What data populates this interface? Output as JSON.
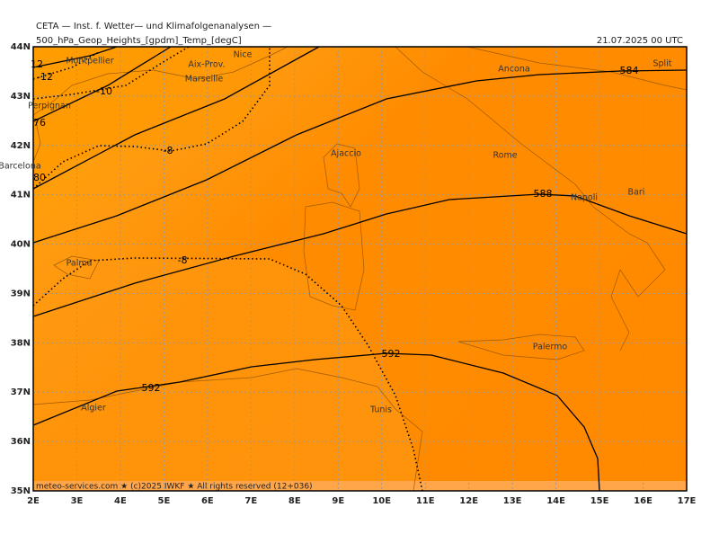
{
  "header": {
    "institute": "CETA — Inst. f. Wetter— und Klimafolgenanalysen —",
    "product": "500_hPa_Geop_Heights_[gpdm]_Temp_[degC]",
    "datetime": "21.07.2025 00 UTC"
  },
  "footer": "meteo-services.com ★ (c)2025 IWKF ★ All rights reserved (12+036)",
  "lon_ticks": [
    "2E",
    "3E",
    "4E",
    "5E",
    "6E",
    "7E",
    "8E",
    "9E",
    "10E",
    "11E",
    "12E",
    "13E",
    "14E",
    "15E",
    "16E",
    "17E"
  ],
  "lat_ticks": [
    "35N",
    "36N",
    "37N",
    "38N",
    "39N",
    "40N",
    "41N",
    "42N",
    "43N",
    "44N"
  ],
  "cities": [
    "Montpellier",
    "Aix-Prov.",
    "Nice",
    "Marseille",
    "Perpignan",
    "Barcelona",
    "Ajaccio",
    "Ancona",
    "Split",
    "Rome",
    "Napoli",
    "Bari",
    "Palma",
    "Palermo",
    "Algier",
    "Tunis"
  ],
  "contour_labels": [
    "584",
    "588",
    "592",
    "592",
    "80",
    "76",
    "-8",
    "-8",
    "-10",
    "-12",
    "12"
  ]
}
